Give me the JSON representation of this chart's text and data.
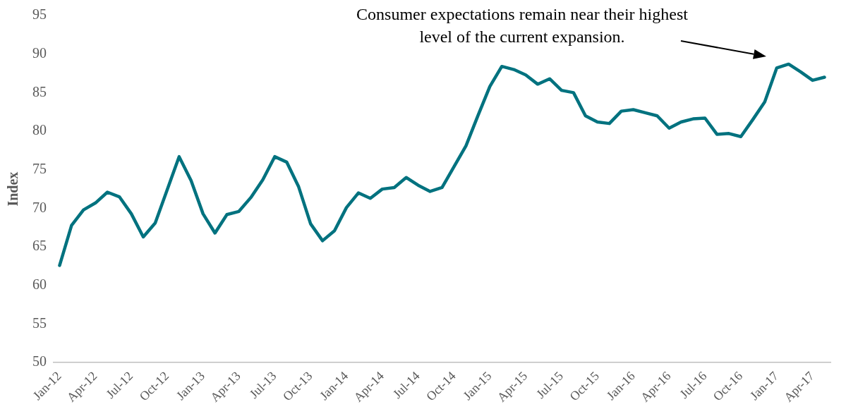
{
  "chart_data": {
    "type": "line",
    "ylabel": "Index",
    "categories": [
      "Jan-12",
      null,
      null,
      "Apr-12",
      null,
      null,
      "Jul-12",
      null,
      null,
      "Oct-12",
      null,
      null,
      "Jan-13",
      null,
      null,
      "Apr-13",
      null,
      null,
      "Jul-13",
      null,
      null,
      "Oct-13",
      null,
      null,
      "Jan-14",
      null,
      null,
      "Apr-14",
      null,
      null,
      "Jul-14",
      null,
      null,
      "Oct-14",
      null,
      null,
      "Jan-15",
      null,
      null,
      "Apr-15",
      null,
      null,
      "Jul-15",
      null,
      null,
      "Oct-15",
      null,
      null,
      "Jan-16",
      null,
      null,
      "Apr-16",
      null,
      null,
      "Jul-16",
      null,
      null,
      "Oct-16",
      null,
      null,
      "Jan-17",
      null,
      null,
      "Apr-17",
      null
    ],
    "series": [
      {
        "color": "#00727f",
        "values": [
          62.6,
          67.8,
          69.8,
          70.7,
          72.1,
          71.5,
          69.3,
          66.3,
          68.1,
          72.4,
          76.7,
          73.6,
          69.3,
          66.8,
          69.2,
          69.6,
          71.4,
          73.7,
          76.7,
          76.0,
          72.8,
          68.0,
          65.8,
          67.1,
          70.1,
          72.0,
          71.3,
          72.5,
          72.7,
          74.0,
          73.0,
          72.2,
          72.7,
          75.4,
          78.1,
          82.0,
          85.8,
          88.4,
          88.0,
          87.3,
          86.1,
          86.8,
          85.3,
          85.0,
          82.0,
          81.2,
          81.0,
          82.6,
          82.8,
          82.4,
          82.0,
          80.4,
          81.2,
          81.6,
          81.7,
          79.6,
          79.7,
          79.3,
          81.5,
          83.8,
          88.2,
          88.7,
          87.7,
          86.6,
          87.0
        ]
      }
    ],
    "ylim": [
      50,
      95
    ],
    "yticks": [
      50,
      55,
      60,
      65,
      70,
      75,
      80,
      85,
      90,
      95
    ],
    "grid": false,
    "legend": false,
    "marker": "none",
    "line_style": "solid",
    "annotations": [
      "Consumer expectations remain near their highest level of the current expansion."
    ]
  }
}
